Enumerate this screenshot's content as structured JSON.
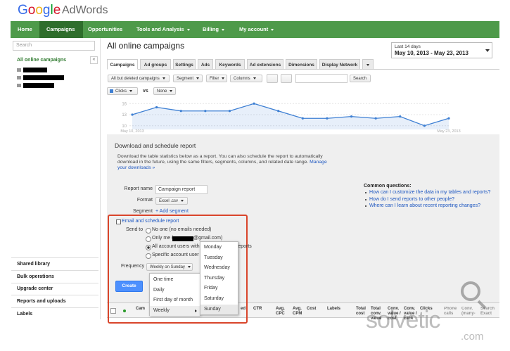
{
  "header": {
    "logo_google": "Google",
    "logo_product": "AdWords"
  },
  "nav": [
    "Home",
    "Campaigns",
    "Opportunities",
    "Tools and Analysis",
    "Billing",
    "My account"
  ],
  "sidebar": {
    "search_placeholder": "Search",
    "collapse": "«",
    "root": "All online campaigns",
    "bottom": [
      "Shared library",
      "Bulk operations",
      "Upgrade center",
      "Reports and uploads",
      "Labels"
    ]
  },
  "main": {
    "title": "All online campaigns",
    "date_range": {
      "label": "Last 14 days",
      "value": "May 10, 2013 - May 23, 2013"
    },
    "tabs": [
      "Campaigns",
      "Ad groups",
      "Settings",
      "Ads",
      "Keywords",
      "Ad extensions",
      "Dimensions",
      "Display Network"
    ],
    "toolbar": {
      "scope": "All but deleted campaigns",
      "segment": "Segment",
      "filter": "Filter",
      "columns": "Columns",
      "search": "Search"
    },
    "metrics": {
      "primary": "Clicks",
      "vs": "vs",
      "secondary": "None"
    }
  },
  "overview_chart": {
    "type": "line",
    "categories": [
      "May 10, 2013",
      null,
      null,
      null,
      null,
      null,
      null,
      null,
      null,
      null,
      null,
      null,
      null,
      "May 23, 2013"
    ],
    "values": [
      13,
      15,
      14,
      14,
      14,
      16,
      14,
      12,
      12,
      12.5,
      12,
      12.5,
      10,
      12
    ],
    "color": "#3d7fd3",
    "ylim": [
      9,
      17
    ],
    "yticks": [
      10,
      13,
      16
    ],
    "grid": true
  },
  "report": {
    "title": "Download and schedule report",
    "description": "Download the table statistics below as a report. You can also schedule the report to automatically download in the future, using the same filters, segments, columns, and related date range.",
    "link": "Manage your downloads »",
    "name_label": "Report name",
    "name_value": "Campaign report",
    "format_label": "Format",
    "format_value": "Excel .csv",
    "segment_label": "Segment",
    "segment_link": "+ Add segment",
    "email": {
      "toggle": "Email and schedule report",
      "send_to_label": "Send to",
      "option_none": "No one (no emails needed)",
      "option_me_prefix": "Only me (",
      "option_me_suffix": "@gmail.com)",
      "option_all": "All account users with",
      "option_all_tail": "reports",
      "option_specific": "Specific account user",
      "frequency_label": "Frequency",
      "frequency_value": "Weekly on Sunday",
      "frequency_menu": [
        "One time",
        "Daily",
        "First day of month",
        "Weekly"
      ],
      "days": [
        "Monday",
        "Tuesday",
        "Wednesday",
        "Thursday",
        "Friday",
        "Saturday",
        "Sunday"
      ]
    },
    "create": "Create"
  },
  "help": {
    "title": "Common questions:",
    "links": [
      "How can I customize the data in my tables and reports?",
      "How do I send reports to other people?",
      "Where can I learn about recent reporting changes?"
    ]
  },
  "table": {
    "columns": [
      "Cam",
      "ed",
      "CTR",
      "Avg. CPC",
      "Avg. CPM",
      "Cost",
      "Labels",
      "Total cost",
      "Total conv. value",
      "Conv. value / cost",
      "Conv. value / click",
      "Clicks",
      "Phone calls",
      "Conv. (many-",
      "Search Exact"
    ]
  },
  "watermark": {
    "brand": "solvetic",
    "suffix": ".com"
  }
}
